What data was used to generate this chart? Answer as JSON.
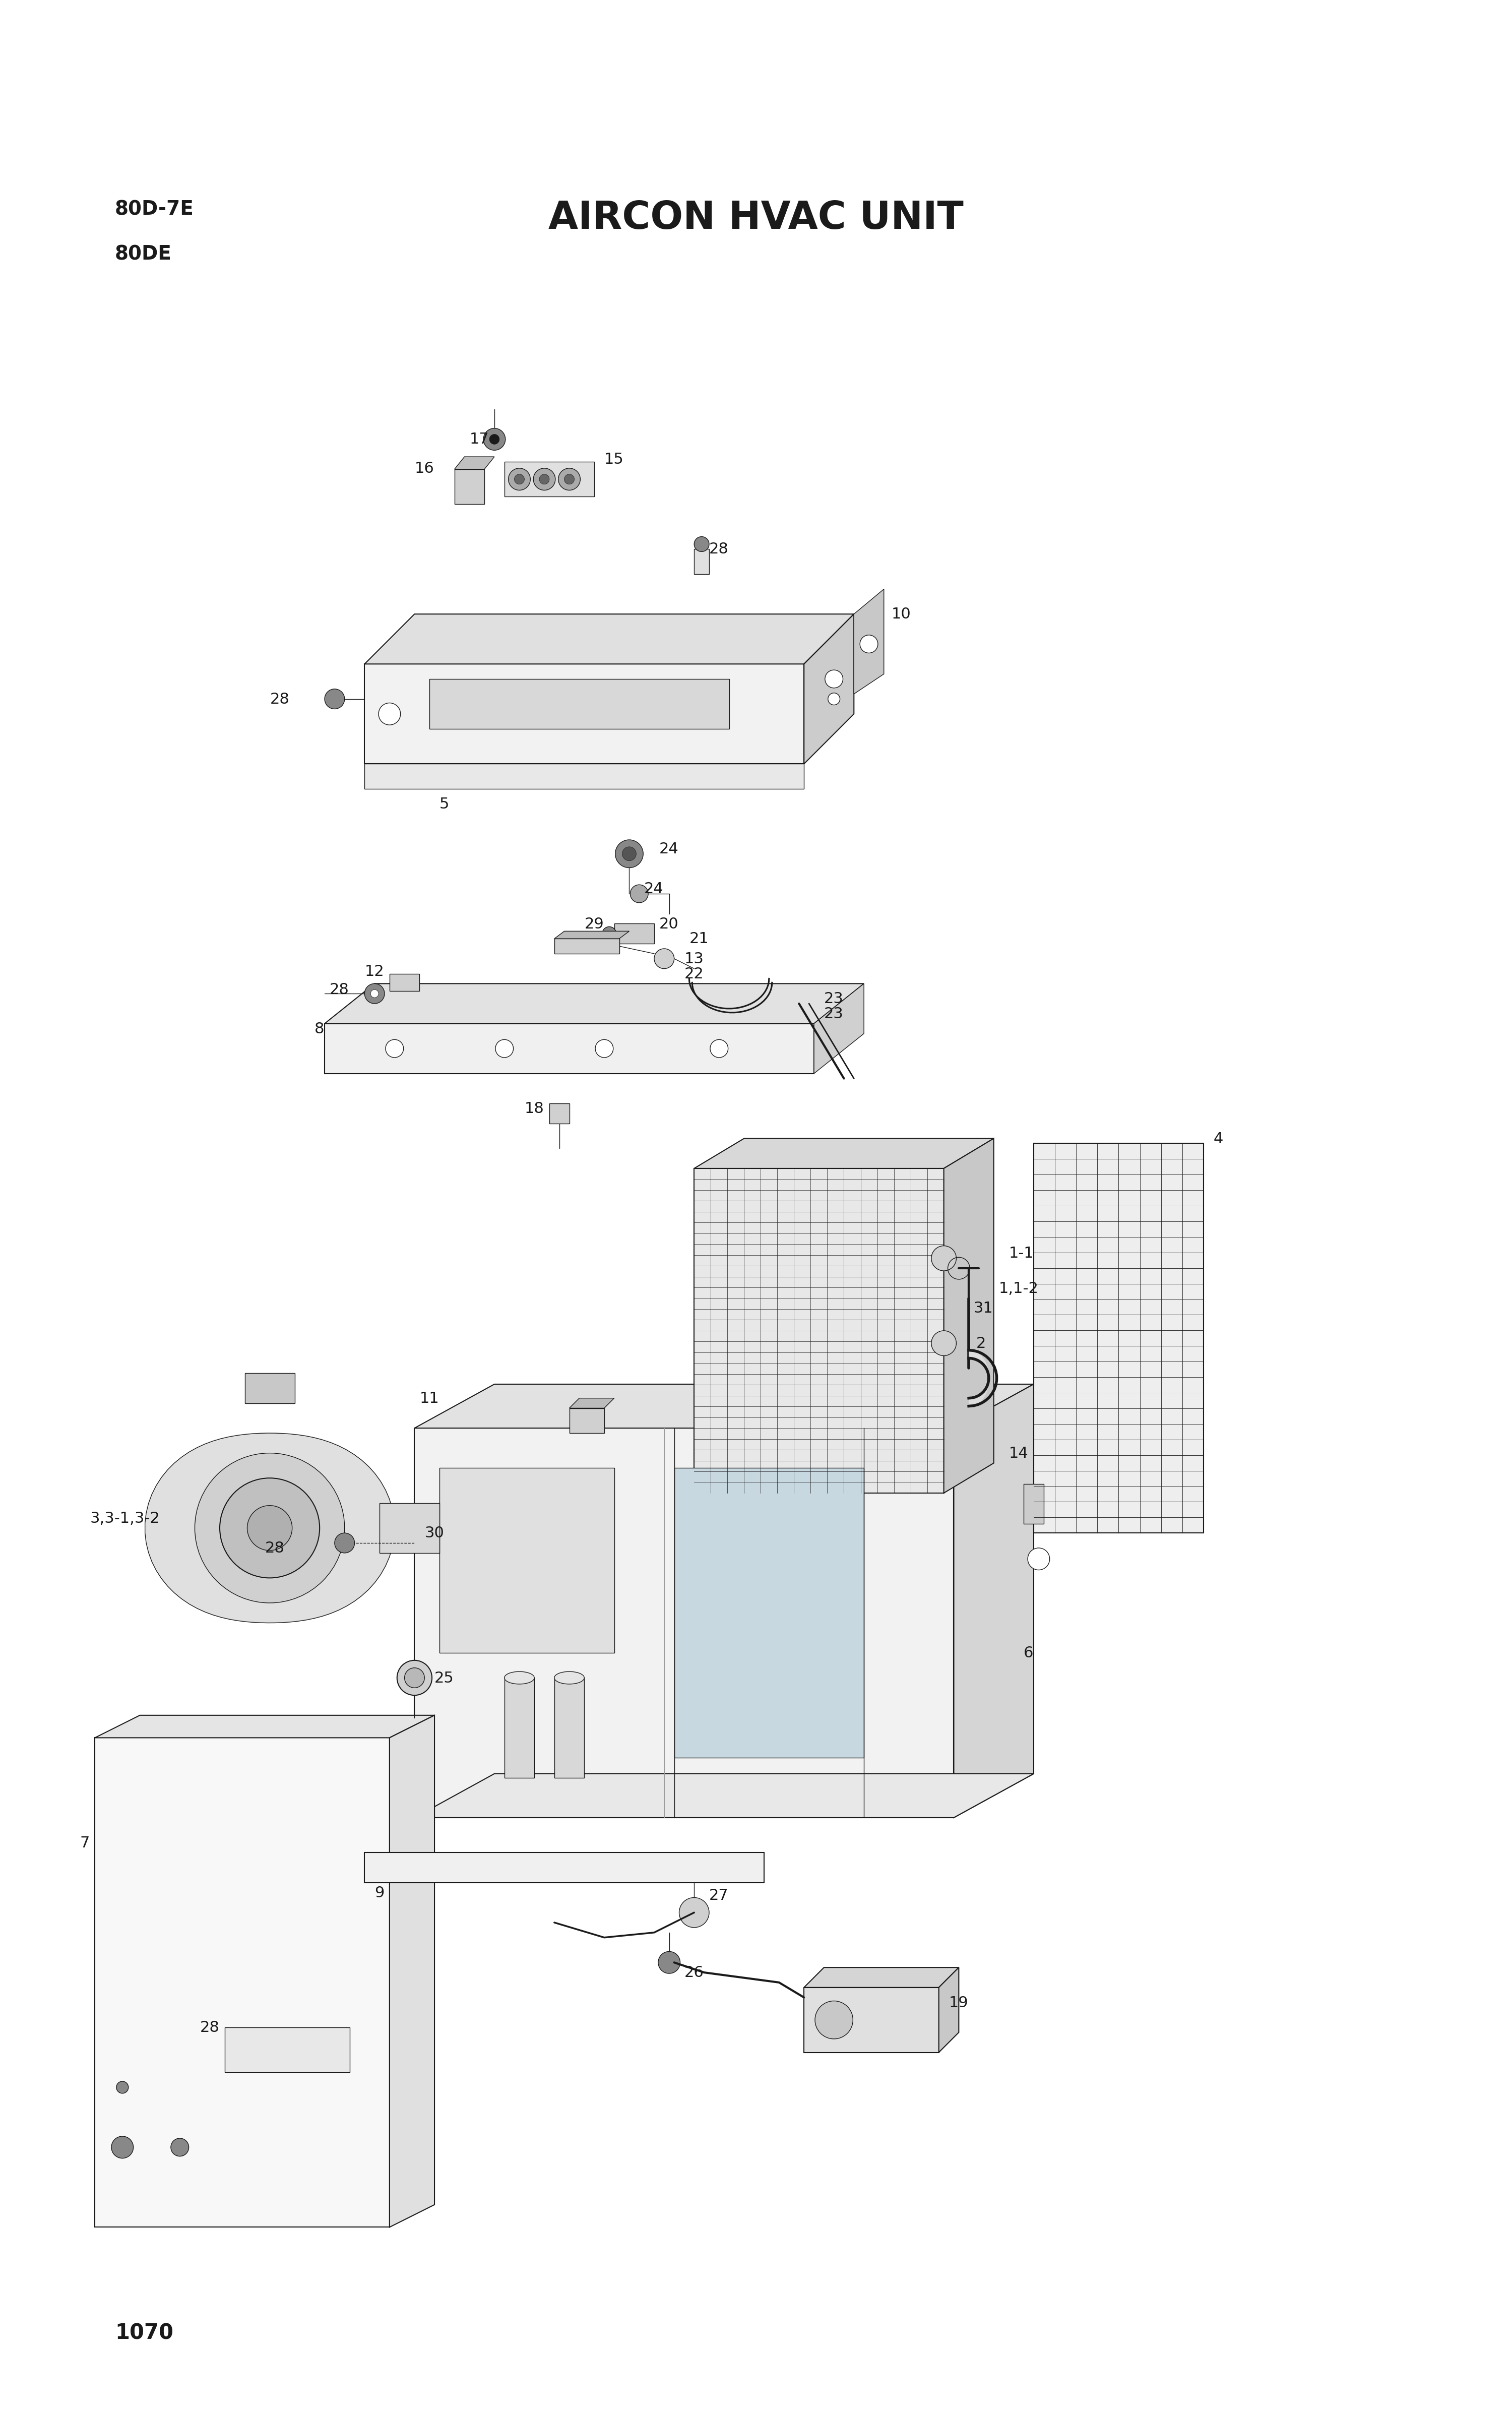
{
  "title": "AIRCON HVAC UNIT",
  "model_line1": "80D-7E",
  "model_line2": "80DE",
  "page_number": "1070",
  "bg": "#ffffff",
  "lc": "#1a1a1a",
  "fig_w": 30.08,
  "fig_h": 48.14
}
